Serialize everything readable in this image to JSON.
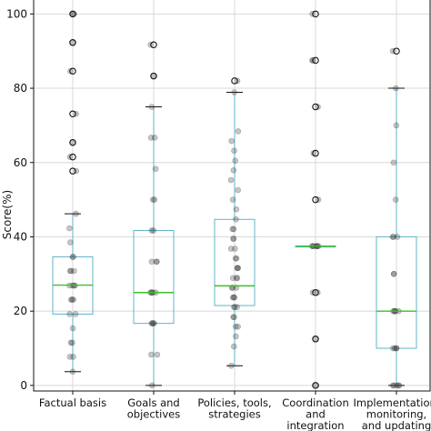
{
  "chart_data": {
    "type": "box",
    "ylabel": "Score(%)",
    "xlabel": "",
    "ylim": [
      -1.5,
      104
    ],
    "yticks": [
      0,
      20,
      40,
      60,
      80,
      100
    ],
    "grid": true,
    "categories": [
      [
        "Factual basis"
      ],
      [
        "Goals and",
        "objectives"
      ],
      [
        "Policies, tools,",
        "strategies"
      ],
      [
        "Coordination",
        "and",
        "integration"
      ],
      [
        "Implementation,",
        "monitoring,",
        "and updating"
      ]
    ],
    "boxes": [
      {
        "whislo": 3.7,
        "q1": 19.2,
        "med": 27.0,
        "q3": 34.6,
        "whishi": 46.2,
        "fliers": [
          57.7,
          61.5,
          65.4,
          73.1,
          84.6,
          92.3,
          100
        ]
      },
      {
        "whislo": 0,
        "q1": 16.7,
        "med": 25.0,
        "q3": 41.7,
        "whishi": 75.0,
        "fliers": [
          83.3,
          91.7
        ]
      },
      {
        "whislo": 5.3,
        "q1": 21.5,
        "med": 26.8,
        "q3": 44.7,
        "whishi": 78.9,
        "fliers": [
          82.0
        ]
      },
      {
        "whislo": 37.5,
        "q1": 37.5,
        "med": 37.5,
        "q3": 37.5,
        "whishi": 37.5,
        "fliers": [
          0,
          12.5,
          25.0,
          50.0,
          62.5,
          75.0,
          87.5,
          100
        ]
      },
      {
        "whislo": 0,
        "q1": 10.0,
        "med": 20.0,
        "q3": 40.0,
        "whishi": 80.0,
        "fliers": [
          90.0
        ]
      }
    ],
    "points": [
      [
        3.7,
        7.7,
        7.7,
        11.5,
        11.5,
        15.4,
        19.2,
        19.2,
        23.1,
        23.1,
        23.1,
        26.9,
        26.9,
        26.9,
        26.9,
        30.8,
        30.8,
        30.8,
        34.6,
        34.6,
        38.5,
        42.3,
        46.2,
        57.7,
        61.5,
        65.4,
        73.1,
        84.6,
        92.3,
        100,
        100
      ],
      [
        0,
        8.3,
        8.3,
        16.7,
        16.7,
        16.7,
        16.7,
        25,
        25,
        25,
        25,
        25,
        33.3,
        33.3,
        33.3,
        41.7,
        41.7,
        50,
        50,
        58.3,
        66.7,
        66.7,
        75,
        83.3,
        91.7
      ],
      [
        5.3,
        10.5,
        13.2,
        15.8,
        15.8,
        18.4,
        18.4,
        21.1,
        21.1,
        21.1,
        23.7,
        23.7,
        23.7,
        26.3,
        26.3,
        26.3,
        28.9,
        28.9,
        28.9,
        31.6,
        31.6,
        31.6,
        34.2,
        34.2,
        36.8,
        36.8,
        39.5,
        39.5,
        42.1,
        42.1,
        44.7,
        47.4,
        50,
        52.6,
        55.3,
        57.9,
        60.5,
        63.2,
        65.8,
        68.4,
        78.9,
        82
      ],
      [
        0,
        12.5,
        25,
        25,
        37.5,
        37.5,
        37.5,
        37.5,
        37.5,
        37.5,
        37.5,
        50,
        62.5,
        75,
        87.5,
        87.5,
        100
      ],
      [
        0,
        0,
        0,
        0,
        0,
        10,
        10,
        10,
        10,
        20,
        20,
        20,
        20,
        20,
        30,
        30,
        40,
        40,
        40,
        50,
        60,
        70,
        80,
        90
      ]
    ],
    "colors": {
      "box": "#5fb6c9",
      "median": "#3fbf2a",
      "whisker": "#5fb6c9",
      "cap": "#111111",
      "grid": "#d8d8d8",
      "points": "#333333",
      "flier_edge": "#111111"
    }
  }
}
